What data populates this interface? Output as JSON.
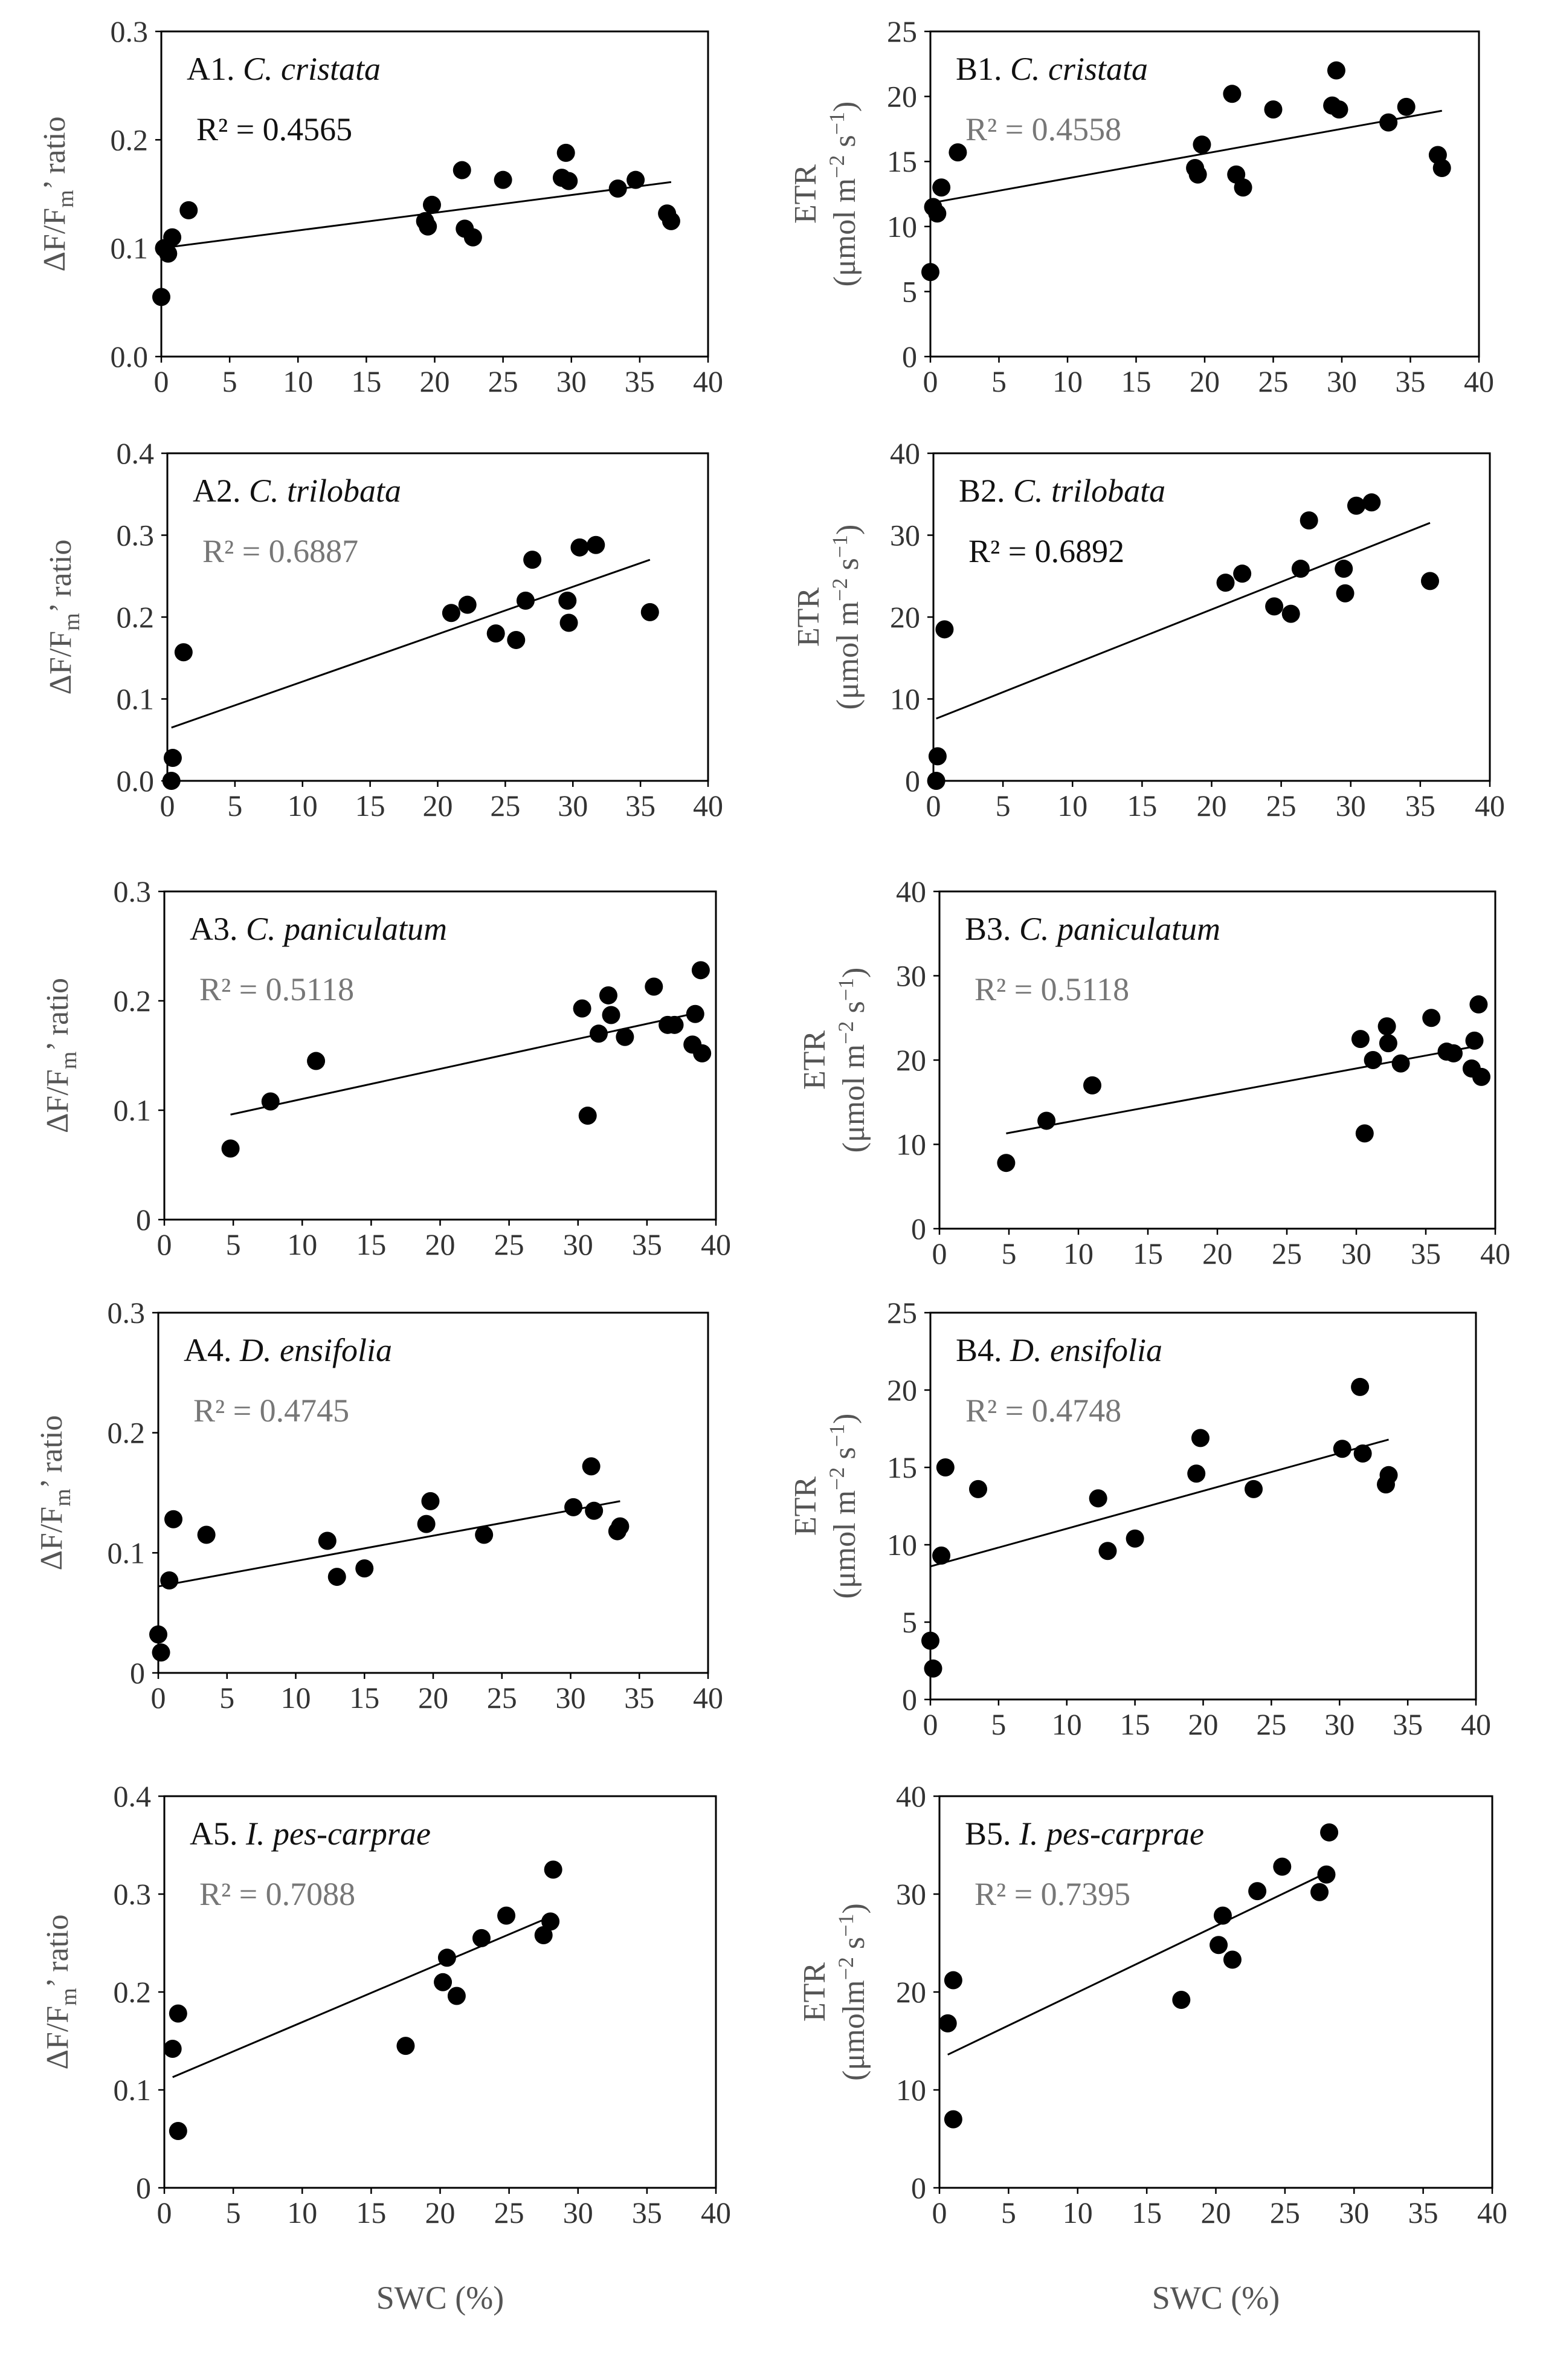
{
  "figure": {
    "x_axis_label": "SWC (%)",
    "y_label_A_parts": [
      "ΔF/F",
      "m",
      "’ ratio"
    ],
    "y_label_B_top": "ETR",
    "y_unit_standard_parts": [
      "(μmol m",
      "−2",
      " s",
      "−1",
      ")"
    ],
    "y_unit_compact_parts": [
      "(μmolm",
      "−2",
      " s",
      "−1",
      ")"
    ]
  },
  "chart_data": [
    {
      "id": "A1",
      "type": "scatter",
      "panel_label": "A1.",
      "species": "C. cristata",
      "r2": "R² = 0.4565",
      "r2_dark": true,
      "ylabel_variant": "A",
      "xlabel": "",
      "xlim": [
        0,
        40
      ],
      "ylim": [
        0,
        0.3
      ],
      "xticks": [
        0,
        5,
        10,
        15,
        20,
        25,
        30,
        35,
        40
      ],
      "yticks": [
        0,
        0.1,
        0.2,
        0.3
      ],
      "ytick_labels": [
        "0.0",
        "0.1",
        "0.2",
        "0.3"
      ],
      "points": [
        [
          0,
          0.055
        ],
        [
          0.2,
          0.1
        ],
        [
          0.5,
          0.095
        ],
        [
          0.8,
          0.11
        ],
        [
          2,
          0.135
        ],
        [
          19.3,
          0.125
        ],
        [
          19.5,
          0.12
        ],
        [
          19.8,
          0.14
        ],
        [
          22,
          0.172
        ],
        [
          22.2,
          0.118
        ],
        [
          22.8,
          0.11
        ],
        [
          25,
          0.163
        ],
        [
          29.3,
          0.165
        ],
        [
          29.6,
          0.188
        ],
        [
          29.8,
          0.162
        ],
        [
          33.4,
          0.155
        ],
        [
          34.7,
          0.163
        ],
        [
          37,
          0.132
        ],
        [
          37.3,
          0.125
        ]
      ],
      "trendline": [
        [
          0,
          0.1
        ],
        [
          37.3,
          0.161
        ]
      ]
    },
    {
      "id": "B1",
      "type": "scatter",
      "panel_label": "B1.",
      "species": "C. cristata",
      "r2": "R² = 0.4558",
      "r2_dark": false,
      "ylabel_variant": "B_standard",
      "xlabel": "",
      "xlim": [
        0,
        40
      ],
      "ylim": [
        0,
        25
      ],
      "xticks": [
        0,
        5,
        10,
        15,
        20,
        25,
        30,
        35,
        40
      ],
      "yticks": [
        0,
        5,
        10,
        15,
        20,
        25
      ],
      "ytick_labels": [
        "0",
        "5",
        "10",
        "15",
        "20",
        "25"
      ],
      "points": [
        [
          0,
          6.5
        ],
        [
          0.2,
          11.5
        ],
        [
          0.5,
          11
        ],
        [
          0.8,
          13
        ],
        [
          2,
          15.7
        ],
        [
          19.3,
          14.5
        ],
        [
          19.5,
          14
        ],
        [
          19.8,
          16.3
        ],
        [
          22,
          20.2
        ],
        [
          22.3,
          14
        ],
        [
          22.8,
          13
        ],
        [
          25,
          19
        ],
        [
          29.3,
          19.3
        ],
        [
          29.6,
          22
        ],
        [
          29.8,
          19
        ],
        [
          33.4,
          18
        ],
        [
          34.7,
          19.2
        ],
        [
          37,
          15.5
        ],
        [
          37.3,
          14.5
        ]
      ],
      "trendline": [
        [
          0,
          11.8
        ],
        [
          37.3,
          18.9
        ]
      ]
    },
    {
      "id": "A2",
      "type": "scatter",
      "panel_label": "A2.",
      "species": "C. trilobata",
      "r2": "R² = 0.6887",
      "r2_dark": false,
      "ylabel_variant": "A",
      "xlabel": "",
      "xlim": [
        0,
        40
      ],
      "ylim": [
        0,
        0.4
      ],
      "xticks": [
        0,
        5,
        10,
        15,
        20,
        25,
        30,
        35,
        40
      ],
      "yticks": [
        0,
        0.1,
        0.2,
        0.3,
        0.4
      ],
      "ytick_labels": [
        "0.0",
        "0.1",
        "0.2",
        "0.3",
        "0.4"
      ],
      "points": [
        [
          0.3,
          0.0
        ],
        [
          0.4,
          0.028
        ],
        [
          1.2,
          0.157
        ],
        [
          21,
          0.205
        ],
        [
          22.2,
          0.215
        ],
        [
          24.3,
          0.18
        ],
        [
          25.8,
          0.172
        ],
        [
          26.5,
          0.22
        ],
        [
          27,
          0.27
        ],
        [
          29.6,
          0.22
        ],
        [
          29.7,
          0.193
        ],
        [
          30.5,
          0.285
        ],
        [
          31.7,
          0.288
        ],
        [
          35.7,
          0.206
        ]
      ],
      "trendline": [
        [
          0.3,
          0.065
        ],
        [
          35.7,
          0.27
        ]
      ]
    },
    {
      "id": "B2",
      "type": "scatter",
      "panel_label": "B2.",
      "species": "C. trilobata",
      "r2": "R² = 0.6892",
      "r2_dark": true,
      "ylabel_variant": "B_standard",
      "xlabel": "",
      "xlim": [
        0,
        40
      ],
      "ylim": [
        0,
        40
      ],
      "xticks": [
        0,
        5,
        10,
        15,
        20,
        25,
        30,
        35,
        40
      ],
      "yticks": [
        0,
        10,
        20,
        30,
        40
      ],
      "ytick_labels": [
        "0",
        "10",
        "20",
        "30",
        "40"
      ],
      "points": [
        [
          0.2,
          0
        ],
        [
          0.3,
          3
        ],
        [
          0.8,
          18.5
        ],
        [
          21,
          24.2
        ],
        [
          22.2,
          25.3
        ],
        [
          24.5,
          21.3
        ],
        [
          25.7,
          20.4
        ],
        [
          26.4,
          25.9
        ],
        [
          27,
          31.8
        ],
        [
          29.5,
          25.9
        ],
        [
          29.6,
          22.9
        ],
        [
          30.4,
          33.6
        ],
        [
          31.5,
          34
        ],
        [
          35.7,
          24.4
        ]
      ],
      "trendline": [
        [
          0.2,
          7.6
        ],
        [
          35.7,
          31.5
        ]
      ]
    },
    {
      "id": "A3",
      "type": "scatter",
      "panel_label": "A3.",
      "species": "C.  paniculatum",
      "r2": "R² = 0.5118",
      "r2_dark": false,
      "ylabel_variant": "A",
      "xlabel": "",
      "xlim": [
        0,
        40
      ],
      "ylim": [
        0,
        0.3
      ],
      "xticks": [
        0,
        5,
        10,
        15,
        20,
        25,
        30,
        35,
        40
      ],
      "yticks": [
        0,
        0.1,
        0.2,
        0.3
      ],
      "ytick_labels": [
        "0",
        "0.1",
        "0.2",
        "0.3"
      ],
      "points": [
        [
          4.8,
          0.065
        ],
        [
          7.7,
          0.108
        ],
        [
          11,
          0.145
        ],
        [
          30.3,
          0.193
        ],
        [
          30.7,
          0.095
        ],
        [
          31.5,
          0.17
        ],
        [
          32.2,
          0.205
        ],
        [
          32.4,
          0.187
        ],
        [
          33.4,
          0.167
        ],
        [
          35.5,
          0.213
        ],
        [
          36.5,
          0.178
        ],
        [
          37,
          0.178
        ],
        [
          38.3,
          0.16
        ],
        [
          38.5,
          0.188
        ],
        [
          38.9,
          0.228
        ],
        [
          39,
          0.152
        ]
      ],
      "trendline": [
        [
          4.8,
          0.096
        ],
        [
          39,
          0.19
        ]
      ]
    },
    {
      "id": "B3",
      "type": "scatter",
      "panel_label": "B3.",
      "species": "C.  paniculatum",
      "r2": "R² = 0.5118",
      "r2_dark": false,
      "ylabel_variant": "B_standard",
      "xlabel": "",
      "xlim": [
        0,
        40
      ],
      "ylim": [
        0,
        40
      ],
      "xticks": [
        0,
        5,
        10,
        15,
        20,
        25,
        30,
        35,
        40
      ],
      "yticks": [
        0,
        10,
        20,
        30,
        40
      ],
      "ytick_labels": [
        "0",
        "10",
        "20",
        "30",
        "40"
      ],
      "points": [
        [
          4.8,
          7.8
        ],
        [
          7.7,
          12.8
        ],
        [
          11,
          17
        ],
        [
          30.3,
          22.5
        ],
        [
          30.6,
          11.3
        ],
        [
          31.2,
          20
        ],
        [
          32.2,
          24
        ],
        [
          32.3,
          22
        ],
        [
          33.2,
          19.6
        ],
        [
          35.4,
          25
        ],
        [
          36.5,
          21
        ],
        [
          37,
          20.8
        ],
        [
          38.3,
          19
        ],
        [
          38.5,
          22.3
        ],
        [
          38.8,
          26.6
        ],
        [
          39,
          18
        ]
      ],
      "trendline": [
        [
          4.8,
          11.3
        ],
        [
          38.8,
          21.7
        ]
      ]
    },
    {
      "id": "A4",
      "type": "scatter",
      "panel_label": "A4.",
      "species": "D. ensifolia",
      "r2": "R² = 0.4745",
      "r2_dark": false,
      "ylabel_variant": "A",
      "xlabel": "",
      "xlim": [
        0,
        40
      ],
      "ylim": [
        0,
        0.3
      ],
      "xticks": [
        0,
        5,
        10,
        15,
        20,
        25,
        30,
        35,
        40
      ],
      "yticks": [
        0,
        0.1,
        0.2,
        0.3
      ],
      "ytick_labels": [
        "0",
        "0.1",
        "0.2",
        "0.3"
      ],
      "points": [
        [
          0,
          0.032
        ],
        [
          0.2,
          0.017
        ],
        [
          0.8,
          0.077
        ],
        [
          1.1,
          0.128
        ],
        [
          3.5,
          0.115
        ],
        [
          12.3,
          0.11
        ],
        [
          13,
          0.08
        ],
        [
          15,
          0.087
        ],
        [
          19.5,
          0.124
        ],
        [
          19.8,
          0.143
        ],
        [
          23.7,
          0.115
        ],
        [
          30.2,
          0.138
        ],
        [
          31.5,
          0.172
        ],
        [
          31.7,
          0.135
        ],
        [
          33.4,
          0.118
        ],
        [
          33.6,
          0.122
        ]
      ],
      "trendline": [
        [
          0,
          0.072
        ],
        [
          33.6,
          0.143
        ]
      ]
    },
    {
      "id": "B4",
      "type": "scatter",
      "panel_label": "B4.",
      "species": "D. ensifolia",
      "r2": "R² = 0.4748",
      "r2_dark": false,
      "ylabel_variant": "B_standard",
      "xlabel": "",
      "xlim": [
        0,
        40
      ],
      "ylim": [
        0,
        25
      ],
      "xticks": [
        0,
        5,
        10,
        15,
        20,
        25,
        30,
        35,
        40
      ],
      "yticks": [
        0,
        5,
        10,
        15,
        20,
        25
      ],
      "ytick_labels": [
        "0",
        "5",
        "10",
        "15",
        "20",
        "25"
      ],
      "points": [
        [
          0,
          3.8
        ],
        [
          0.2,
          2
        ],
        [
          0.8,
          9.3
        ],
        [
          1.1,
          15
        ],
        [
          3.5,
          13.6
        ],
        [
          12.3,
          13
        ],
        [
          13,
          9.6
        ],
        [
          15,
          10.4
        ],
        [
          19.5,
          14.6
        ],
        [
          19.8,
          16.9
        ],
        [
          23.7,
          13.6
        ],
        [
          30.2,
          16.2
        ],
        [
          31.5,
          20.2
        ],
        [
          31.7,
          15.9
        ],
        [
          33.4,
          13.9
        ],
        [
          33.6,
          14.5
        ]
      ],
      "trendline": [
        [
          0,
          8.6
        ],
        [
          33.6,
          16.8
        ]
      ]
    },
    {
      "id": "A5",
      "type": "scatter",
      "panel_label": "A5.",
      "species": "I. pes-carprae",
      "r2": "R² = 0.7088",
      "r2_dark": false,
      "ylabel_variant": "A",
      "xlabel": "SWC (%)",
      "xlim": [
        0,
        40
      ],
      "ylim": [
        0,
        0.4
      ],
      "xticks": [
        0,
        5,
        10,
        15,
        20,
        25,
        30,
        35,
        40
      ],
      "yticks": [
        0,
        0.1,
        0.2,
        0.3,
        0.4
      ],
      "ytick_labels": [
        "0",
        "0.1",
        "0.2",
        "0.3",
        "0.4"
      ],
      "points": [
        [
          0.6,
          0.142
        ],
        [
          1,
          0.178
        ],
        [
          1,
          0.058
        ],
        [
          17.5,
          0.145
        ],
        [
          20.2,
          0.21
        ],
        [
          20.5,
          0.235
        ],
        [
          21.2,
          0.196
        ],
        [
          23,
          0.255
        ],
        [
          24.8,
          0.278
        ],
        [
          27.5,
          0.258
        ],
        [
          28,
          0.272
        ],
        [
          28.2,
          0.325
        ]
      ],
      "trendline": [
        [
          0.6,
          0.113
        ],
        [
          28.2,
          0.278
        ]
      ]
    },
    {
      "id": "B5",
      "type": "scatter",
      "panel_label": "B5.",
      "species": "I. pes-carprae",
      "r2": "R² = 0.7395",
      "r2_dark": false,
      "ylabel_variant": "B_compact",
      "xlabel": "SWC (%)",
      "xlim": [
        0,
        40
      ],
      "ylim": [
        0,
        40
      ],
      "xticks": [
        0,
        5,
        10,
        15,
        20,
        25,
        30,
        35,
        40
      ],
      "yticks": [
        0,
        10,
        20,
        30,
        40
      ],
      "ytick_labels": [
        "0",
        "10",
        "20",
        "30",
        "40"
      ],
      "points": [
        [
          0.6,
          16.8
        ],
        [
          1,
          21.2
        ],
        [
          1,
          7
        ],
        [
          17.5,
          19.2
        ],
        [
          20.2,
          24.8
        ],
        [
          20.5,
          27.8
        ],
        [
          21.2,
          23.3
        ],
        [
          23,
          30.3
        ],
        [
          24.8,
          32.8
        ],
        [
          27.5,
          30.2
        ],
        [
          28,
          32
        ],
        [
          28.2,
          36.3
        ]
      ],
      "trendline": [
        [
          0.6,
          13.6
        ],
        [
          28.2,
          32.3
        ]
      ]
    }
  ]
}
